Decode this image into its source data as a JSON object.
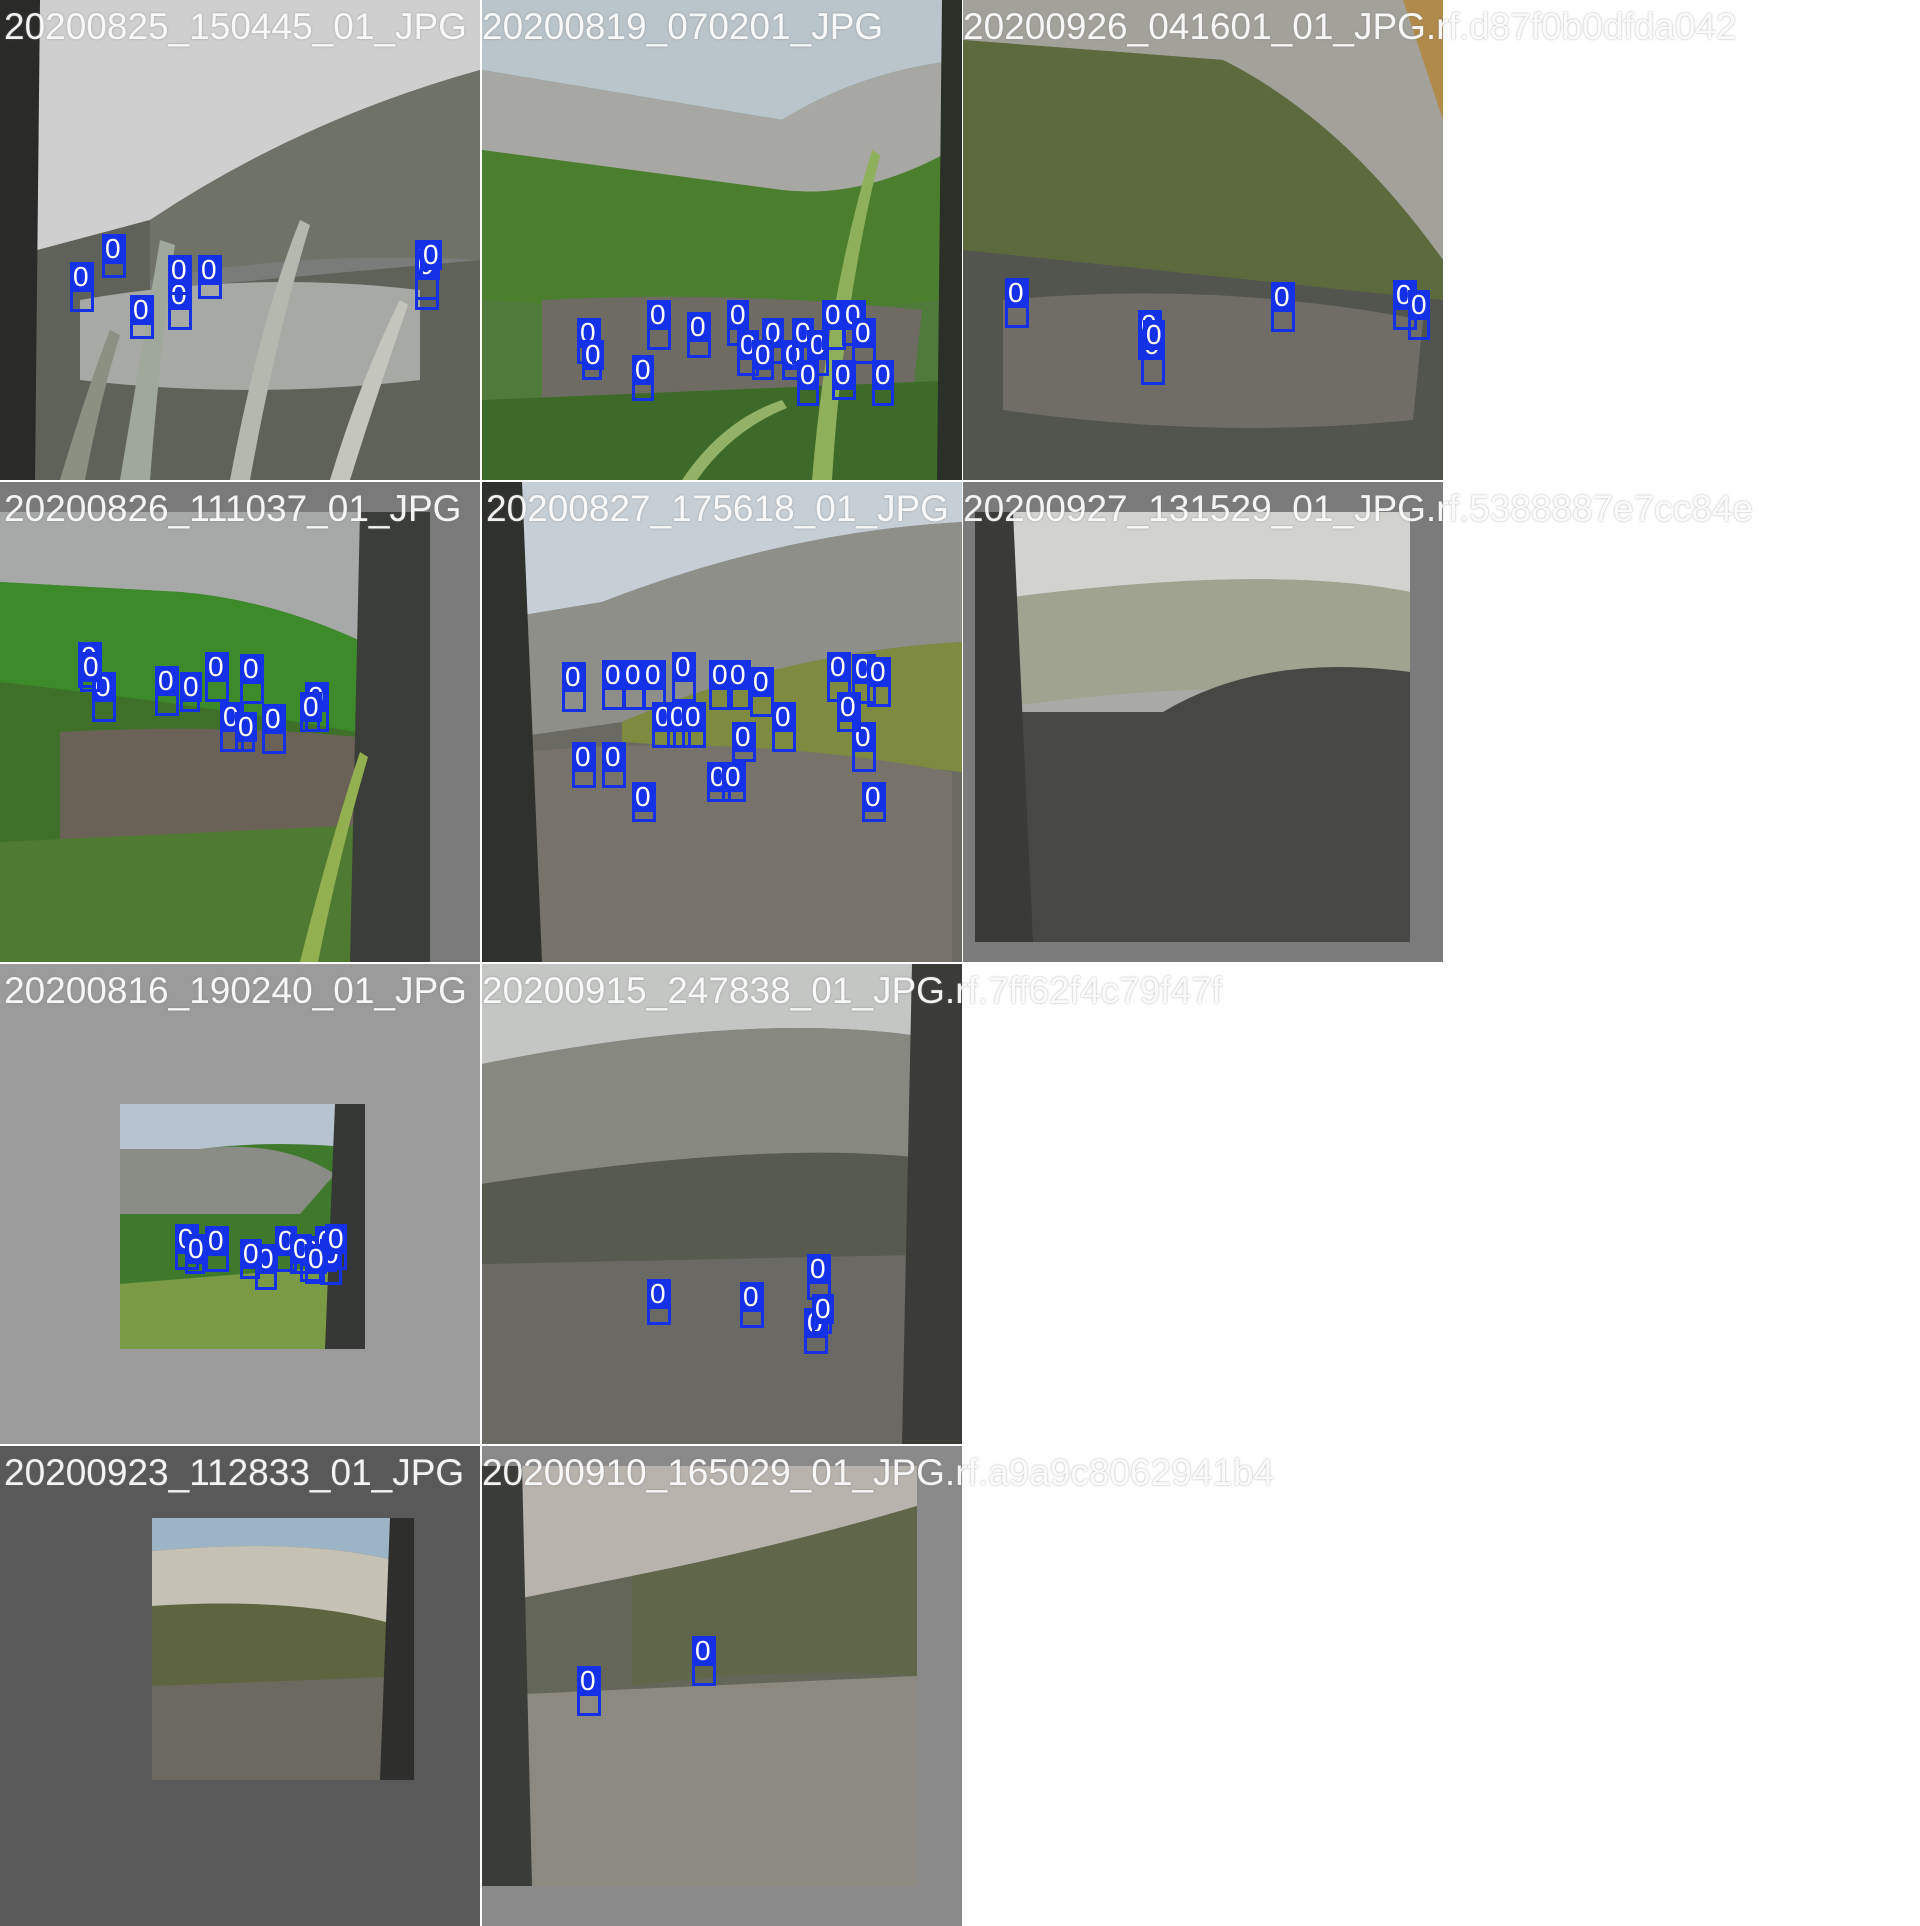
{
  "colors": {
    "box": "#1531e8",
    "label_text": "#ffffff",
    "filename_text": "#ffffff",
    "pad_light": "#9b9b9b",
    "pad_dark": "#595959"
  },
  "box_label": "0",
  "tiles": [
    {
      "id": "r0c0",
      "filename": "20200825_150445_01_JPG",
      "detections": 9
    },
    {
      "id": "r0c1",
      "filename": "20200819_070201_JPG",
      "detections": 18
    },
    {
      "id": "r0c2",
      "filename": "20200926_041601_01_JPG.rf.d87f0b0dfda042",
      "detections": 7
    },
    {
      "id": "r1c0",
      "filename": "20200826_111037_01_JPG",
      "detections": 12
    },
    {
      "id": "r1c1",
      "filename": "20200827_175618_01_JPG",
      "detections": 24
    },
    {
      "id": "r1c2",
      "filename": "20200927_131529_01_JPG.rf.5388887e7cc84e",
      "detections": 0
    },
    {
      "id": "r2c0",
      "filename": "20200816_190240_01_JPG",
      "detections": 12
    },
    {
      "id": "r2c1",
      "filename": "20200915_247838_01_JPG.rf.7ff62f4c79f47f",
      "detections": 5
    },
    {
      "id": "r3c0",
      "filename": "20200923_112833_01_JPG",
      "detections": 0
    },
    {
      "id": "r3c1",
      "filename": "20200910_165029_01_JPG.rf.a9a9c8062941b4",
      "detections": 2
    }
  ]
}
